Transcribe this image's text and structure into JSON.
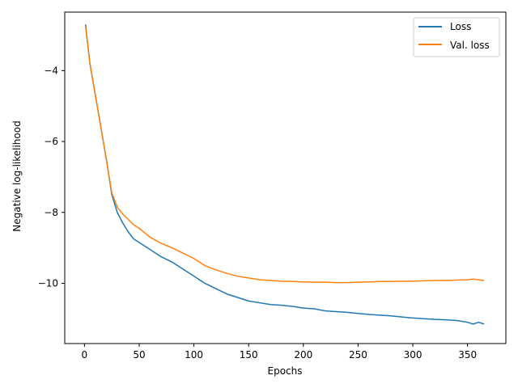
{
  "chart_data": {
    "type": "line",
    "title": "",
    "xlabel": "Epochs",
    "ylabel": "Negative log-likelihood",
    "xlim": [
      -18,
      385
    ],
    "ylim": [
      -11.7,
      -2.35
    ],
    "xticks": [
      0,
      50,
      100,
      150,
      200,
      250,
      300,
      350
    ],
    "yticks": [
      -10,
      -8,
      -6,
      -4
    ],
    "xtick_labels": [
      "0",
      "50",
      "100",
      "150",
      "200",
      "250",
      "300",
      "350"
    ],
    "ytick_labels": [
      "−10",
      "−8",
      "−6",
      "−4"
    ],
    "grid": false,
    "legend_position": "top-right",
    "colors": {
      "loss": "#1f77b4",
      "val_loss": "#ff7f0e"
    },
    "series": [
      {
        "name": "Loss",
        "x": [
          1,
          5,
          10,
          15,
          20,
          25,
          30,
          35,
          40,
          45,
          50,
          60,
          70,
          80,
          90,
          100,
          110,
          120,
          130,
          140,
          150,
          160,
          170,
          180,
          190,
          200,
          210,
          220,
          230,
          240,
          250,
          260,
          270,
          280,
          290,
          300,
          310,
          320,
          330,
          340,
          350,
          355,
          360,
          365
        ],
        "y": [
          -2.7,
          -3.8,
          -4.7,
          -5.6,
          -6.5,
          -7.5,
          -8.0,
          -8.3,
          -8.55,
          -8.75,
          -8.85,
          -9.05,
          -9.25,
          -9.4,
          -9.6,
          -9.8,
          -10.0,
          -10.15,
          -10.3,
          -10.4,
          -10.5,
          -10.55,
          -10.6,
          -10.62,
          -10.65,
          -10.7,
          -10.72,
          -10.78,
          -10.8,
          -10.82,
          -10.85,
          -10.88,
          -10.9,
          -10.92,
          -10.95,
          -10.98,
          -11.0,
          -11.02,
          -11.03,
          -11.05,
          -11.1,
          -11.15,
          -11.1,
          -11.15
        ]
      },
      {
        "name": "Val. loss",
        "x": [
          1,
          5,
          10,
          15,
          20,
          25,
          30,
          35,
          40,
          45,
          50,
          60,
          70,
          80,
          90,
          100,
          110,
          120,
          130,
          140,
          150,
          160,
          170,
          180,
          190,
          200,
          210,
          220,
          230,
          240,
          250,
          260,
          270,
          280,
          290,
          300,
          310,
          320,
          330,
          340,
          350,
          355,
          360,
          365
        ],
        "y": [
          -2.75,
          -3.8,
          -4.7,
          -5.6,
          -6.5,
          -7.45,
          -7.85,
          -8.05,
          -8.2,
          -8.35,
          -8.45,
          -8.7,
          -8.87,
          -9.0,
          -9.15,
          -9.3,
          -9.5,
          -9.62,
          -9.72,
          -9.8,
          -9.85,
          -9.9,
          -9.92,
          -9.94,
          -9.95,
          -9.96,
          -9.97,
          -9.97,
          -9.98,
          -9.98,
          -9.97,
          -9.96,
          -9.95,
          -9.95,
          -9.94,
          -9.94,
          -9.93,
          -9.92,
          -9.92,
          -9.91,
          -9.9,
          -9.88,
          -9.9,
          -9.92
        ]
      }
    ]
  }
}
